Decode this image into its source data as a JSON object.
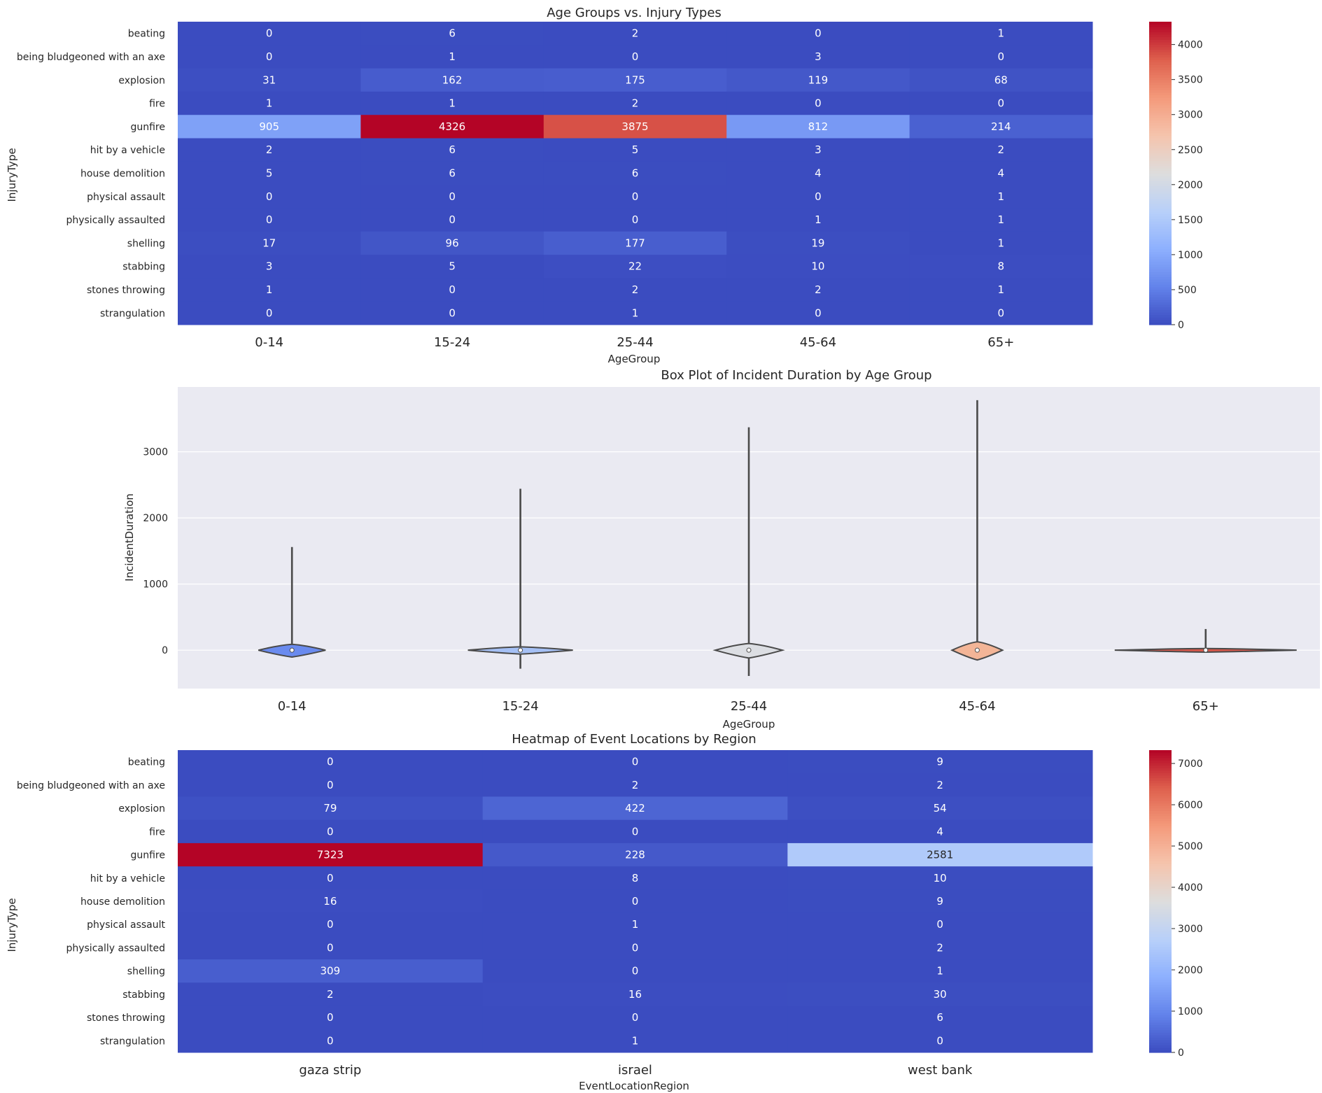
{
  "chart_data": [
    {
      "type": "heatmap",
      "title": "Age Groups vs. Injury Types",
      "xlabel": "AgeGroup",
      "ylabel": "InjuryType",
      "columns": [
        "0-14",
        "15-24",
        "25-44",
        "45-64",
        "65+"
      ],
      "rows": [
        "beating",
        "being bludgeoned with an axe",
        "explosion",
        "fire",
        "gunfire",
        "hit by a vehicle",
        "house demolition",
        "physical assault",
        "physically assaulted",
        "shelling",
        "stabbing",
        "stones throwing",
        "strangulation"
      ],
      "values": [
        [
          0,
          6,
          2,
          0,
          1
        ],
        [
          0,
          1,
          0,
          3,
          0
        ],
        [
          31,
          162,
          175,
          119,
          68
        ],
        [
          1,
          1,
          2,
          0,
          0
        ],
        [
          905,
          4326,
          3875,
          812,
          214
        ],
        [
          2,
          6,
          5,
          3,
          2
        ],
        [
          5,
          6,
          6,
          4,
          4
        ],
        [
          0,
          0,
          0,
          0,
          1
        ],
        [
          0,
          0,
          0,
          1,
          1
        ],
        [
          17,
          96,
          177,
          19,
          1
        ],
        [
          3,
          5,
          22,
          10,
          8
        ],
        [
          1,
          0,
          2,
          2,
          1
        ],
        [
          0,
          0,
          1,
          0,
          0
        ]
      ],
      "vmin": 0,
      "vmax": 4326,
      "colormap": "coolwarm",
      "colorbar_ticks": [
        0,
        500,
        1000,
        1500,
        2000,
        2500,
        3000,
        3500,
        4000
      ]
    },
    {
      "type": "violin",
      "title": "Box Plot of Incident Duration by Age Group",
      "xlabel": "AgeGroup",
      "ylabel": "IncidentDuration",
      "categories": [
        "0-14",
        "15-24",
        "25-44",
        "45-64",
        "65+"
      ],
      "whisker_min": [
        -30,
        -280,
        -390,
        -60,
        -10
      ],
      "whisker_max": [
        1560,
        2440,
        3370,
        3780,
        320
      ],
      "median": [
        0,
        0,
        0,
        0,
        0
      ],
      "colors": [
        "#6a8bef",
        "#a5c0f5",
        "#dcdee3",
        "#f3b597",
        "#d7574a"
      ],
      "ylim": [
        -580,
        3980
      ],
      "yticks": [
        0,
        1000,
        2000,
        3000
      ]
    },
    {
      "type": "heatmap",
      "title": "Heatmap of Event Locations by Region",
      "xlabel": "EventLocationRegion",
      "ylabel": "InjuryType",
      "columns": [
        "gaza strip",
        "israel",
        "west bank"
      ],
      "rows": [
        "beating",
        "being bludgeoned with an axe",
        "explosion",
        "fire",
        "gunfire",
        "hit by a vehicle",
        "house demolition",
        "physical assault",
        "physically assaulted",
        "shelling",
        "stabbing",
        "stones throwing",
        "strangulation"
      ],
      "values": [
        [
          0,
          0,
          9
        ],
        [
          0,
          2,
          2
        ],
        [
          79,
          422,
          54
        ],
        [
          0,
          0,
          4
        ],
        [
          7323,
          228,
          2581
        ],
        [
          0,
          8,
          10
        ],
        [
          16,
          0,
          9
        ],
        [
          0,
          1,
          0
        ],
        [
          0,
          0,
          2
        ],
        [
          309,
          0,
          1
        ],
        [
          2,
          16,
          30
        ],
        [
          0,
          0,
          6
        ],
        [
          0,
          1,
          0
        ]
      ],
      "vmin": 0,
      "vmax": 7323,
      "colormap": "coolwarm",
      "colorbar_ticks": [
        0,
        1000,
        2000,
        3000,
        4000,
        5000,
        6000,
        7000
      ]
    }
  ]
}
